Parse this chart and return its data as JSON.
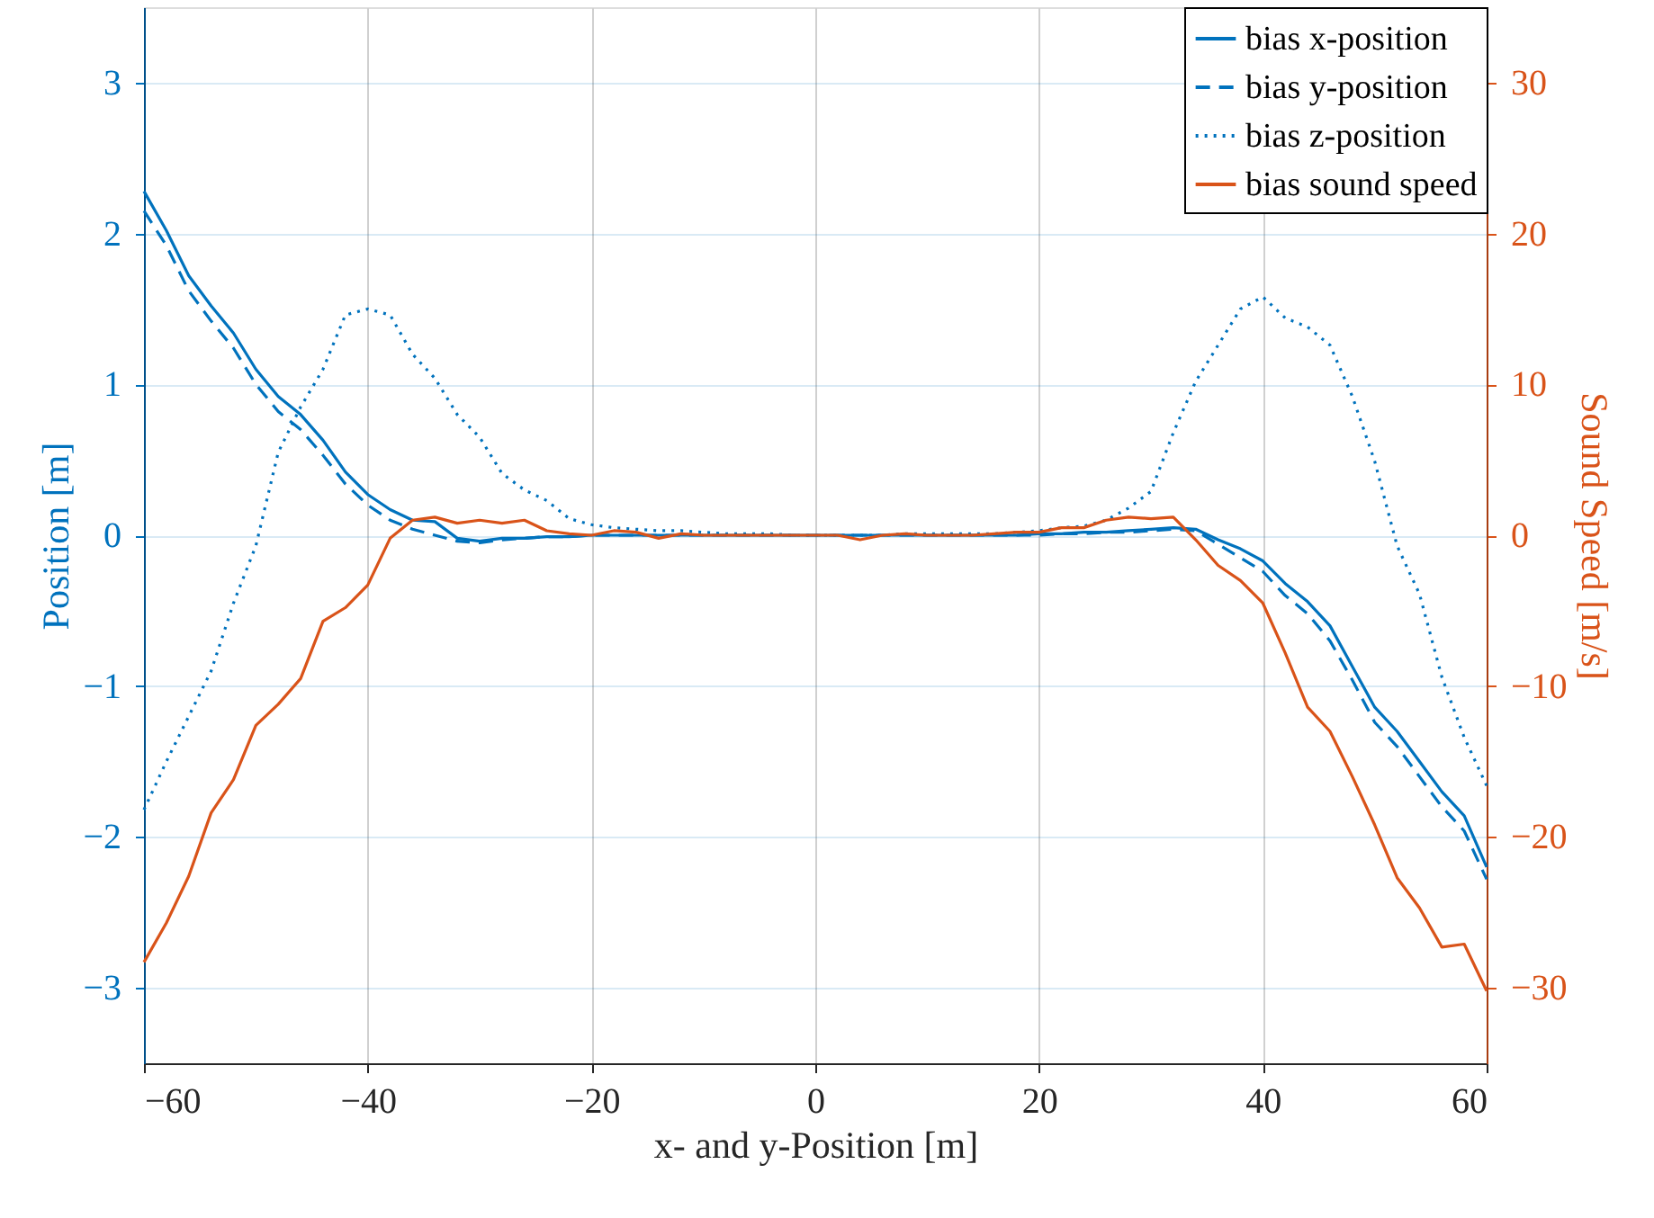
{
  "chart_data": {
    "type": "line",
    "xlabel": "x- and y-Position [m]",
    "ylabel": "Position [m]",
    "y2label": "Sound Speed [m/s]",
    "x": [
      -60,
      -58,
      -56,
      -54,
      -52,
      -50,
      -48,
      -46,
      -44,
      -42,
      -40,
      -38,
      -36,
      -34,
      -32,
      -30,
      -28,
      -26,
      -24,
      -22,
      -20,
      -18,
      -16,
      -14,
      -12,
      -10,
      -8,
      -6,
      -4,
      -2,
      0,
      2,
      4,
      6,
      8,
      10,
      12,
      14,
      16,
      18,
      20,
      22,
      24,
      26,
      28,
      30,
      32,
      34,
      36,
      38,
      40,
      42,
      44,
      46,
      48,
      50,
      52,
      54,
      56,
      58,
      60
    ],
    "xlim": [
      -60,
      60
    ],
    "xticks": [
      -60,
      -40,
      -20,
      0,
      20,
      40,
      60
    ],
    "ylim": [
      -3.5,
      3.5
    ],
    "yticks": [
      -3,
      -2,
      -1,
      0,
      1,
      2,
      3
    ],
    "y2lim": [
      -35,
      35
    ],
    "y2ticks": [
      -30,
      -20,
      -10,
      0,
      10,
      20,
      30
    ],
    "grid": true,
    "legend": "top right",
    "series": [
      {
        "name": "bias x-position",
        "color": "#0072bd",
        "line_style": "solid",
        "values": [
          2.28,
          2.02,
          1.72,
          1.52,
          1.34,
          1.1,
          0.92,
          0.8,
          0.63,
          0.42,
          0.27,
          0.17,
          0.1,
          0.09,
          -0.02,
          -0.04,
          -0.02,
          -0.02,
          -0.01,
          -0.01,
          0,
          0,
          0,
          0,
          0,
          0,
          0,
          0,
          0,
          0,
          0,
          0,
          0,
          0,
          0,
          0,
          0,
          0,
          0,
          0,
          0.01,
          0.01,
          0.02,
          0.02,
          0.03,
          0.04,
          0.05,
          0.04,
          -0.03,
          -0.09,
          -0.17,
          -0.32,
          -0.44,
          -0.6,
          -0.87,
          -1.14,
          -1.3,
          -1.5,
          -1.7,
          -1.86,
          -2.2
        ]
      },
      {
        "name": "bias y-position",
        "color": "#0072bd",
        "line_style": "dashed",
        "values": [
          2.15,
          1.92,
          1.62,
          1.42,
          1.24,
          1.0,
          0.82,
          0.7,
          0.53,
          0.34,
          0.2,
          0.1,
          0.04,
          0.0,
          -0.04,
          -0.05,
          -0.03,
          -0.02,
          -0.01,
          -0.01,
          0,
          0,
          0,
          0,
          0,
          0,
          0,
          0,
          0,
          0,
          0,
          0,
          0,
          0,
          0,
          0,
          0,
          0,
          0,
          0,
          0.0,
          0.01,
          0.01,
          0.02,
          0.02,
          0.03,
          0.04,
          0.03,
          -0.06,
          -0.15,
          -0.24,
          -0.4,
          -0.52,
          -0.7,
          -0.96,
          -1.24,
          -1.4,
          -1.6,
          -1.8,
          -1.96,
          -2.28
        ]
      },
      {
        "name": "bias z-position",
        "color": "#0072bd",
        "line_style": "dotted",
        "values": [
          -1.82,
          -1.5,
          -1.2,
          -0.9,
          -0.45,
          -0.07,
          0.55,
          0.85,
          1.1,
          1.46,
          1.5,
          1.46,
          1.2,
          1.04,
          0.8,
          0.65,
          0.41,
          0.3,
          0.23,
          0.11,
          0.07,
          0.05,
          0.04,
          0.03,
          0.03,
          0.02,
          0.01,
          0.01,
          0.01,
          0.0,
          0.0,
          0.0,
          0.0,
          0.0,
          0.01,
          0.01,
          0.01,
          0.01,
          0.01,
          0.02,
          0.03,
          0.05,
          0.06,
          0.1,
          0.18,
          0.29,
          0.68,
          1.02,
          1.26,
          1.5,
          1.58,
          1.44,
          1.38,
          1.26,
          0.92,
          0.49,
          -0.07,
          -0.39,
          -0.94,
          -1.34,
          -1.66
        ]
      },
      {
        "name": "bias sound speed",
        "color": "#d95319",
        "line_style": "solid",
        "axis": "y2",
        "values": [
          -28.3,
          -25.7,
          -22.6,
          -18.4,
          -16.2,
          -12.6,
          -11.2,
          -9.5,
          -5.7,
          -4.8,
          -3.3,
          -0.2,
          1.0,
          1.2,
          0.8,
          1.0,
          0.8,
          1.0,
          0.3,
          0.1,
          0.0,
          0.3,
          0.2,
          -0.2,
          0.1,
          0,
          0,
          0,
          0,
          0,
          0,
          0,
          -0.3,
          0,
          0.1,
          0,
          0,
          0,
          0.1,
          0.2,
          0.2,
          0.5,
          0.5,
          1.0,
          1.2,
          1.1,
          1.2,
          -0.3,
          -2.0,
          -3.0,
          -4.5,
          -7.8,
          -11.4,
          -13.0,
          -16.0,
          -19.2,
          -22.7,
          -24.7,
          -27.3,
          -27.1,
          -30.2
        ]
      }
    ]
  }
}
